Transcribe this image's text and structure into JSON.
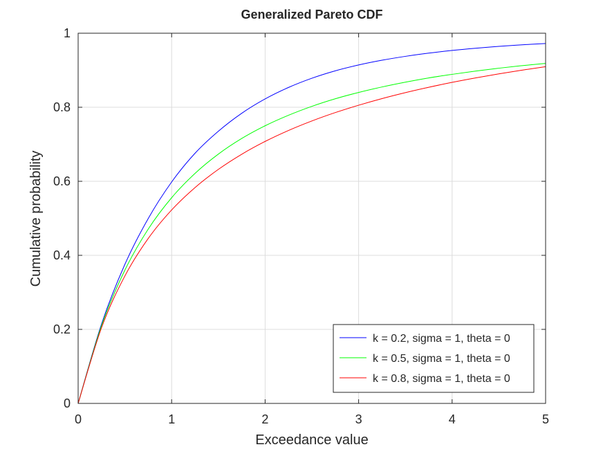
{
  "chart_data": {
    "type": "line",
    "title": "Generalized Pareto CDF",
    "xlabel": "Exceedance value",
    "ylabel": "Cumulative probability",
    "xlim": [
      0,
      5
    ],
    "ylim": [
      0,
      1
    ],
    "xticks": [
      0,
      1,
      2,
      3,
      4,
      5
    ],
    "xtick_labels": [
      "0",
      "1",
      "2",
      "3",
      "4",
      "5"
    ],
    "yticks": [
      0,
      0.2,
      0.4,
      0.6,
      0.8,
      1
    ],
    "ytick_labels": [
      "0",
      "0.2",
      "0.4",
      "0.6",
      "0.8",
      "1"
    ],
    "grid": true,
    "legend_position": "bottom-right",
    "x": [
      0,
      0.25,
      0.5,
      0.75,
      1,
      1.25,
      1.5,
      1.75,
      2,
      2.25,
      2.5,
      2.75,
      3,
      3.25,
      3.5,
      3.75,
      4,
      4.25,
      4.5,
      4.75,
      5
    ],
    "series": [
      {
        "name": "k = 0.2, sigma = 1, theta = 0",
        "color": "#0000ff",
        "values": [
          0,
          0.2143,
          0.3757,
          0.4996,
          0.5981,
          0.6757,
          0.7353,
          0.7838,
          0.8225,
          0.8535,
          0.8784,
          0.8984,
          0.9142,
          0.927,
          0.9375,
          0.9462,
          0.9534,
          0.9594,
          0.9644,
          0.9687,
          0.9722
        ]
      },
      {
        "name": "k = 0.5, sigma = 1, theta = 0",
        "color": "#00ff00",
        "values": [
          0,
          0.2099,
          0.36,
          0.4711,
          0.5556,
          0.6213,
          0.6735,
          0.7157,
          0.75,
          0.7784,
          0.8025,
          0.8229,
          0.84,
          0.8548,
          0.8678,
          0.8793,
          0.8889,
          0.8977,
          0.9055,
          0.9124,
          0.9184
        ]
      },
      {
        "name": "k = 0.8, sigma = 1, theta = 0",
        "color": "#ff0000",
        "values": [
          0,
          0.2045,
          0.3443,
          0.4456,
          0.5225,
          0.583,
          0.6322,
          0.6731,
          0.7077,
          0.7373,
          0.763,
          0.7856,
          0.8055,
          0.8234,
          0.8395,
          0.854,
          0.8672,
          0.8792,
          0.8902,
          0.9003,
          0.9096
        ]
      }
    ]
  }
}
